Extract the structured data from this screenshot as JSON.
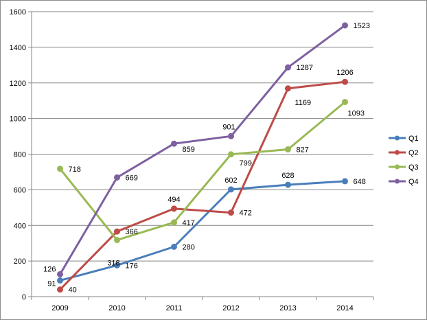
{
  "chart_data": {
    "type": "line",
    "title": "",
    "xlabel": "",
    "ylabel": "",
    "categories": [
      "2009",
      "2010",
      "2011",
      "2012",
      "2013",
      "2014"
    ],
    "ylim": [
      0,
      1600
    ],
    "yticks": [
      "0",
      "200",
      "400",
      "600",
      "800",
      "1000",
      "1200",
      "1400",
      "1600"
    ],
    "grid": true,
    "legend_position": "right",
    "series": [
      {
        "name": "Q1",
        "color": "#4a7ebb",
        "values": [
          91,
          176,
          280,
          602,
          628,
          648
        ]
      },
      {
        "name": "Q2",
        "color": "#be4b48",
        "values": [
          40,
          366,
          494,
          472,
          1169,
          1206
        ]
      },
      {
        "name": "Q3",
        "color": "#98b954",
        "values": [
          718,
          318,
          417,
          799,
          827,
          1093
        ]
      },
      {
        "name": "Q4",
        "color": "#7d60a0",
        "values": [
          126,
          669,
          859,
          901,
          1287,
          1523
        ]
      }
    ]
  }
}
